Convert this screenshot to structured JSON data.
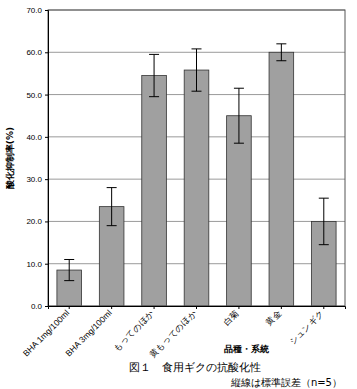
{
  "chart_data": {
    "type": "bar",
    "title": "図１　食用ギクの抗酸化性",
    "annotations": [
      "縦線は標準誤差（n=5）"
    ],
    "x_label": "品種・系統",
    "y_label": "酸化抑制率(%)",
    "categories": [
      "BHA 1mg/100ml",
      "BHA 3mg/100ml",
      "もってのほか",
      "黄もってのほか",
      "白菊",
      "黄金",
      "シュンギク"
    ],
    "values": [
      8.5,
      23.5,
      54.5,
      55.8,
      45.0,
      60.0,
      20.0
    ],
    "errors": [
      2.5,
      4.5,
      5.0,
      5.0,
      6.5,
      2.0,
      5.5
    ],
    "color": "#a0a0a0",
    "ylim": [
      0,
      70
    ],
    "yticks": [
      {
        "value": 0,
        "label": "0.0"
      },
      {
        "value": 10,
        "label": "10.0"
      },
      {
        "value": 20,
        "label": "20.0"
      },
      {
        "value": 30,
        "label": "30.0"
      },
      {
        "value": 40,
        "label": "40.0"
      },
      {
        "value": 50,
        "label": "50.0"
      },
      {
        "value": 60,
        "label": "60.0"
      },
      {
        "value": 70,
        "label": "70.0"
      }
    ],
    "grid": true
  }
}
